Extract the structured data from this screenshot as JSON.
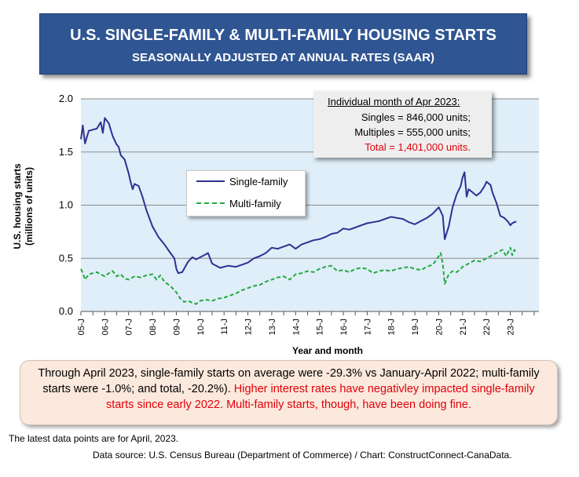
{
  "chart_data": {
    "type": "line",
    "title": "U.S. SINGLE-FAMILY & MULTI-FAMILY HOUSING STARTS",
    "subtitle": "SEASONALLY ADJUSTED AT ANNUAL RATES (SAAR)",
    "xlabel": "Year and month",
    "ylabel": "U.S. housing starts (millions of units)",
    "ylim": [
      0,
      2
    ],
    "yticks": [
      "0.0",
      "0.5",
      "1.0",
      "1.5",
      "2.0"
    ],
    "xticks": [
      "05-J",
      "06-J",
      "07-J",
      "08-J",
      "09-J",
      "10-J",
      "11-J",
      "12-J",
      "13-J",
      "14-J",
      "15-J",
      "16-J",
      "17-J",
      "18-J",
      "19-J",
      "20-J",
      "21-J",
      "22-J",
      "23-J"
    ],
    "legend_position": "center-left",
    "grid": true,
    "series": [
      {
        "name": "Single-family",
        "style": "solid",
        "color": "#2e3192",
        "points": [
          [
            2005.0,
            1.62
          ],
          [
            2005.08,
            1.75
          ],
          [
            2005.17,
            1.58
          ],
          [
            2005.33,
            1.7
          ],
          [
            2005.5,
            1.71
          ],
          [
            2005.67,
            1.72
          ],
          [
            2005.83,
            1.78
          ],
          [
            2005.92,
            1.68
          ],
          [
            2006.0,
            1.82
          ],
          [
            2006.17,
            1.77
          ],
          [
            2006.33,
            1.65
          ],
          [
            2006.5,
            1.57
          ],
          [
            2006.58,
            1.55
          ],
          [
            2006.67,
            1.47
          ],
          [
            2006.83,
            1.43
          ],
          [
            2007.0,
            1.3
          ],
          [
            2007.08,
            1.22
          ],
          [
            2007.17,
            1.15
          ],
          [
            2007.25,
            1.2
          ],
          [
            2007.42,
            1.18
          ],
          [
            2007.58,
            1.08
          ],
          [
            2007.75,
            0.95
          ],
          [
            2008.0,
            0.8
          ],
          [
            2008.25,
            0.7
          ],
          [
            2008.5,
            0.63
          ],
          [
            2008.75,
            0.55
          ],
          [
            2008.92,
            0.5
          ],
          [
            2009.0,
            0.4
          ],
          [
            2009.08,
            0.36
          ],
          [
            2009.25,
            0.37
          ],
          [
            2009.5,
            0.47
          ],
          [
            2009.67,
            0.51
          ],
          [
            2009.83,
            0.49
          ],
          [
            2010.0,
            0.51
          ],
          [
            2010.17,
            0.53
          ],
          [
            2010.33,
            0.55
          ],
          [
            2010.5,
            0.45
          ],
          [
            2010.67,
            0.43
          ],
          [
            2010.83,
            0.41
          ],
          [
            2011.0,
            0.42
          ],
          [
            2011.17,
            0.43
          ],
          [
            2011.5,
            0.42
          ],
          [
            2011.75,
            0.44
          ],
          [
            2012.0,
            0.46
          ],
          [
            2012.25,
            0.5
          ],
          [
            2012.5,
            0.52
          ],
          [
            2012.75,
            0.55
          ],
          [
            2013.0,
            0.6
          ],
          [
            2013.25,
            0.59
          ],
          [
            2013.5,
            0.61
          ],
          [
            2013.75,
            0.63
          ],
          [
            2014.0,
            0.59
          ],
          [
            2014.25,
            0.63
          ],
          [
            2014.5,
            0.65
          ],
          [
            2014.75,
            0.67
          ],
          [
            2015.0,
            0.68
          ],
          [
            2015.25,
            0.7
          ],
          [
            2015.5,
            0.73
          ],
          [
            2015.75,
            0.74
          ],
          [
            2016.0,
            0.78
          ],
          [
            2016.25,
            0.77
          ],
          [
            2016.5,
            0.79
          ],
          [
            2016.75,
            0.81
          ],
          [
            2017.0,
            0.83
          ],
          [
            2017.25,
            0.84
          ],
          [
            2017.5,
            0.85
          ],
          [
            2017.75,
            0.87
          ],
          [
            2018.0,
            0.89
          ],
          [
            2018.25,
            0.88
          ],
          [
            2018.5,
            0.87
          ],
          [
            2018.75,
            0.84
          ],
          [
            2019.0,
            0.82
          ],
          [
            2019.25,
            0.85
          ],
          [
            2019.5,
            0.88
          ],
          [
            2019.75,
            0.92
          ],
          [
            2020.0,
            0.98
          ],
          [
            2020.17,
            0.9
          ],
          [
            2020.25,
            0.68
          ],
          [
            2020.42,
            0.8
          ],
          [
            2020.58,
            0.98
          ],
          [
            2020.75,
            1.1
          ],
          [
            2020.92,
            1.18
          ],
          [
            2021.0,
            1.26
          ],
          [
            2021.08,
            1.31
          ],
          [
            2021.17,
            1.08
          ],
          [
            2021.25,
            1.15
          ],
          [
            2021.42,
            1.12
          ],
          [
            2021.58,
            1.09
          ],
          [
            2021.75,
            1.12
          ],
          [
            2021.92,
            1.18
          ],
          [
            2022.0,
            1.22
          ],
          [
            2022.17,
            1.19
          ],
          [
            2022.25,
            1.12
          ],
          [
            2022.42,
            1.02
          ],
          [
            2022.58,
            0.9
          ],
          [
            2022.75,
            0.88
          ],
          [
            2022.92,
            0.84
          ],
          [
            2023.0,
            0.81
          ],
          [
            2023.08,
            0.83
          ],
          [
            2023.17,
            0.84
          ],
          [
            2023.25,
            0.846
          ]
        ]
      },
      {
        "name": "Multi-family",
        "style": "dashed",
        "color": "#23a940",
        "points": [
          [
            2005.0,
            0.4
          ],
          [
            2005.08,
            0.36
          ],
          [
            2005.17,
            0.3
          ],
          [
            2005.33,
            0.35
          ],
          [
            2005.5,
            0.36
          ],
          [
            2005.67,
            0.37
          ],
          [
            2005.83,
            0.35
          ],
          [
            2006.0,
            0.33
          ],
          [
            2006.17,
            0.36
          ],
          [
            2006.33,
            0.38
          ],
          [
            2006.5,
            0.33
          ],
          [
            2006.67,
            0.35
          ],
          [
            2006.83,
            0.31
          ],
          [
            2007.0,
            0.3
          ],
          [
            2007.25,
            0.33
          ],
          [
            2007.5,
            0.32
          ],
          [
            2007.75,
            0.34
          ],
          [
            2008.0,
            0.35
          ],
          [
            2008.17,
            0.3
          ],
          [
            2008.33,
            0.34
          ],
          [
            2008.5,
            0.28
          ],
          [
            2008.75,
            0.24
          ],
          [
            2009.0,
            0.18
          ],
          [
            2009.17,
            0.12
          ],
          [
            2009.33,
            0.09
          ],
          [
            2009.5,
            0.1
          ],
          [
            2009.67,
            0.08
          ],
          [
            2009.83,
            0.07
          ],
          [
            2010.0,
            0.1
          ],
          [
            2010.25,
            0.11
          ],
          [
            2010.5,
            0.1
          ],
          [
            2010.75,
            0.12
          ],
          [
            2011.0,
            0.13
          ],
          [
            2011.25,
            0.15
          ],
          [
            2011.5,
            0.17
          ],
          [
            2011.75,
            0.2
          ],
          [
            2012.0,
            0.22
          ],
          [
            2012.25,
            0.24
          ],
          [
            2012.5,
            0.25
          ],
          [
            2012.75,
            0.28
          ],
          [
            2013.0,
            0.3
          ],
          [
            2013.25,
            0.32
          ],
          [
            2013.5,
            0.33
          ],
          [
            2013.75,
            0.3
          ],
          [
            2014.0,
            0.35
          ],
          [
            2014.25,
            0.36
          ],
          [
            2014.5,
            0.38
          ],
          [
            2014.75,
            0.37
          ],
          [
            2015.0,
            0.4
          ],
          [
            2015.25,
            0.42
          ],
          [
            2015.5,
            0.43
          ],
          [
            2015.75,
            0.38
          ],
          [
            2016.0,
            0.39
          ],
          [
            2016.25,
            0.37
          ],
          [
            2016.5,
            0.4
          ],
          [
            2016.75,
            0.41
          ],
          [
            2017.0,
            0.4
          ],
          [
            2017.25,
            0.36
          ],
          [
            2017.5,
            0.38
          ],
          [
            2017.75,
            0.39
          ],
          [
            2018.0,
            0.38
          ],
          [
            2018.25,
            0.4
          ],
          [
            2018.5,
            0.41
          ],
          [
            2018.75,
            0.42
          ],
          [
            2019.0,
            0.4
          ],
          [
            2019.25,
            0.39
          ],
          [
            2019.5,
            0.42
          ],
          [
            2019.75,
            0.44
          ],
          [
            2020.0,
            0.52
          ],
          [
            2020.08,
            0.55
          ],
          [
            2020.17,
            0.45
          ],
          [
            2020.25,
            0.26
          ],
          [
            2020.42,
            0.35
          ],
          [
            2020.58,
            0.38
          ],
          [
            2020.75,
            0.37
          ],
          [
            2020.92,
            0.4
          ],
          [
            2021.0,
            0.42
          ],
          [
            2021.25,
            0.45
          ],
          [
            2021.5,
            0.48
          ],
          [
            2021.75,
            0.47
          ],
          [
            2022.0,
            0.5
          ],
          [
            2022.25,
            0.53
          ],
          [
            2022.5,
            0.56
          ],
          [
            2022.67,
            0.58
          ],
          [
            2022.83,
            0.52
          ],
          [
            2023.0,
            0.6
          ],
          [
            2023.08,
            0.53
          ],
          [
            2023.17,
            0.58
          ],
          [
            2023.25,
            0.555
          ]
        ]
      }
    ]
  },
  "legend": {
    "single_label": "Single-family",
    "multi_label": "Multi-family"
  },
  "info_box": {
    "heading": "Individual month of Apr 2023:",
    "singles": "Singles =     846,000 units;",
    "multiples": "Multiples =    555,000 units;",
    "total": "Total = 1,401,000 units."
  },
  "summary": {
    "text": "Through April 2023, single-family starts on average were -29.3% vs January-April 2022; multi-family starts were -1.0%; and total, -20.2%).",
    "highlight": "Higher interest rates have negativley impacted single-family starts since early 2022. Multi-family starts, though, have been doing fine."
  },
  "footnote": "The latest data points are for April, 2023.",
  "source": "Data source: U.S. Census Bureau (Department of Commerce) / Chart: ConstructConnect-CanaData."
}
